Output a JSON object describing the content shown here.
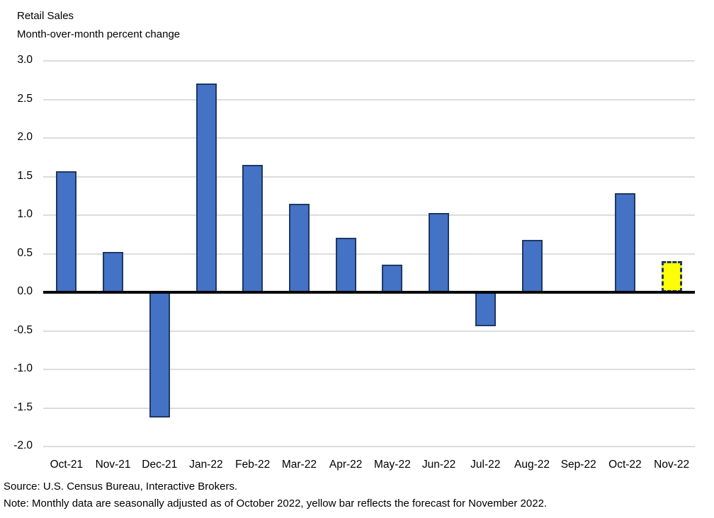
{
  "header": {
    "title": "Retail Sales",
    "subtitle": "Month-over-month percent change"
  },
  "chart_data": {
    "type": "bar",
    "title": "Retail Sales",
    "subtitle": "Month-over-month percent change",
    "xlabel": "",
    "ylabel": "Month-over-month percent change",
    "categories": [
      "Oct-21",
      "Nov-21",
      "Dec-21",
      "Jan-22",
      "Feb-22",
      "Mar-22",
      "Apr-22",
      "May-22",
      "Jun-22",
      "Jul-22",
      "Aug-22",
      "Sep-22",
      "Oct-22",
      "Nov-22"
    ],
    "values": [
      1.57,
      0.52,
      -1.62,
      2.71,
      1.65,
      1.15,
      0.71,
      0.36,
      1.03,
      -0.44,
      0.68,
      0.02,
      1.28,
      0.4
    ],
    "forecast_index": 13,
    "ylim": [
      -2.0,
      3.0
    ],
    "ytick_step": 0.5,
    "ytick_labels": [
      "3.0",
      "2.5",
      "2.0",
      "1.5",
      "1.0",
      "0.5",
      "0.0",
      "-0.5",
      "-1.0",
      "-1.5",
      "-2.0"
    ],
    "grid": true,
    "legend": "none",
    "colors": {
      "bar_fill": "#4472C4",
      "bar_border": "#1F3864",
      "forecast_fill": "#FFFF00",
      "forecast_border": "#1F3864",
      "gridline": "#DCDCDC",
      "zero_line": "#000000"
    }
  },
  "footer": {
    "source": "Source: U.S. Census Bureau, Interactive Brokers.",
    "note": "Note: Monthly data are seasonally adjusted as of October 2022, yellow bar reflects the forecast for November 2022."
  }
}
